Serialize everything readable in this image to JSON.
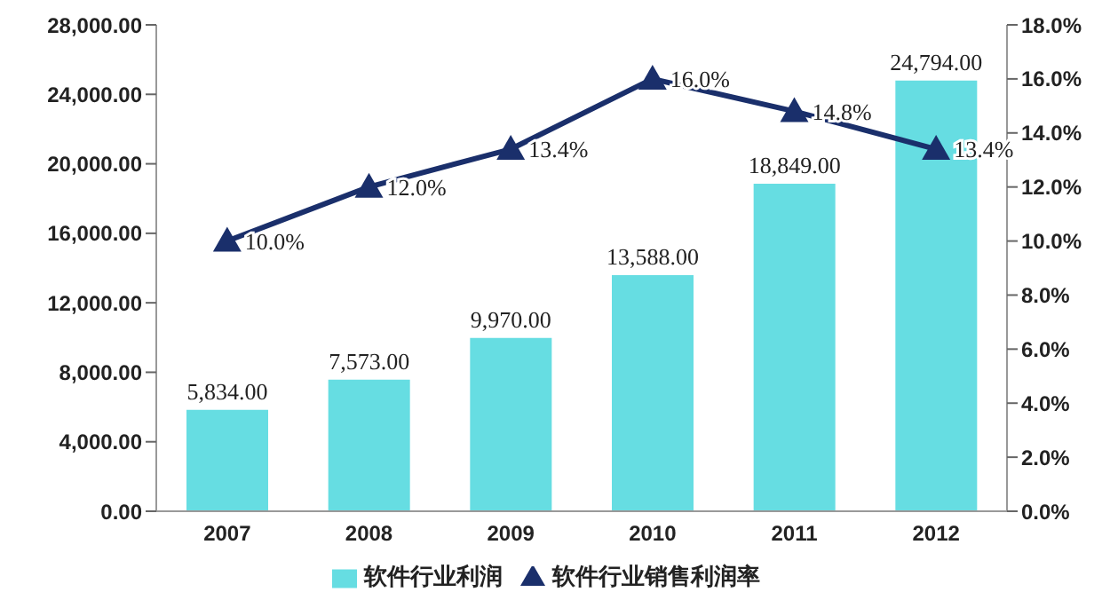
{
  "chart_data": {
    "type": "bar",
    "categories": [
      "2007",
      "2008",
      "2009",
      "2010",
      "2011",
      "2012"
    ],
    "series": [
      {
        "name": "软件行业利润",
        "color": "#66dde2",
        "values": [
          5834,
          7573,
          9970,
          13588,
          18849,
          24794
        ],
        "value_labels": [
          "5,834.00",
          "7,573.00",
          "9,970.00",
          "13,588.00",
          "18,849.00",
          "24,794.00"
        ]
      },
      {
        "name": "软件行业销售利润率",
        "type": "line",
        "axis": "y2",
        "color": "#1a2f6b",
        "values": [
          10,
          12,
          13.4,
          16,
          14.8,
          13.4
        ],
        "value_labels": [
          "10.0%",
          "12.0%",
          "13.4%",
          "16.0%",
          "14.8%",
          "13.4%"
        ]
      }
    ],
    "ylim": [
      0,
      28000
    ],
    "yticks": [
      {
        "value": 0,
        "label": "0.00"
      },
      {
        "value": 4000,
        "label": "4,000.00"
      },
      {
        "value": 8000,
        "label": "8,000.00"
      },
      {
        "value": 12000,
        "label": "12,000.00"
      },
      {
        "value": 16000,
        "label": "16,000.00"
      },
      {
        "value": 20000,
        "label": "20,000.00"
      },
      {
        "value": 24000,
        "label": "24,000.00"
      },
      {
        "value": 28000,
        "label": "28,000.00"
      }
    ],
    "y2lim": [
      0,
      18
    ],
    "y2ticks": [
      {
        "value": 0,
        "label": "0.0%"
      },
      {
        "value": 2,
        "label": "2.0%"
      },
      {
        "value": 4,
        "label": "4.0%"
      },
      {
        "value": 6,
        "label": "6.0%"
      },
      {
        "value": 8,
        "label": "8.0%"
      },
      {
        "value": 10,
        "label": "10.0%"
      },
      {
        "value": 12,
        "label": "12.0%"
      },
      {
        "value": 14,
        "label": "14.0%"
      },
      {
        "value": 16,
        "label": "16.0%"
      },
      {
        "value": 18,
        "label": "18.0%"
      }
    ],
    "legend": "bottom",
    "marker": "triangle",
    "grid": false
  }
}
